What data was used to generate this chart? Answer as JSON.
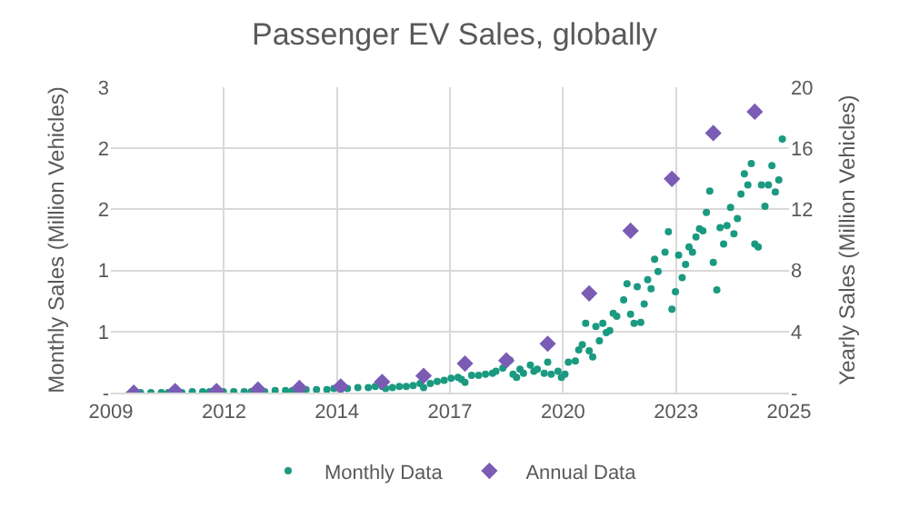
{
  "chart_data": {
    "type": "scatter",
    "title": "Passenger EV Sales, globally",
    "ylabel": "Monthly Sales (Million Vehicles)",
    "y2label": "Yearly Sales (Million Vehicles)",
    "xlim": [
      "2009-06-13",
      "2025-10-30"
    ],
    "xticks": [
      {
        "value": "2009-06-13",
        "label": "2009"
      },
      {
        "value": "2012-03-07",
        "label": "2012"
      },
      {
        "value": "2014-11-28",
        "label": "2014"
      },
      {
        "value": "2017-08-22",
        "label": "2017"
      },
      {
        "value": "2020-05-15",
        "label": "2020"
      },
      {
        "value": "2023-02-06",
        "label": "2023"
      },
      {
        "value": "2025-10-30",
        "label": "2025"
      }
    ],
    "ylim": [
      0,
      3
    ],
    "yticks": [
      {
        "value": 0,
        "label": "-"
      },
      {
        "value": 0.6,
        "label": "1"
      },
      {
        "value": 1.2,
        "label": "1"
      },
      {
        "value": 1.8,
        "label": "2"
      },
      {
        "value": 2.4,
        "label": "2"
      },
      {
        "value": 3,
        "label": "3"
      }
    ],
    "y2lim": [
      0,
      20
    ],
    "y2ticks": [
      {
        "value": 0,
        "label": "-"
      },
      4,
      8,
      12,
      16,
      20
    ],
    "grid": true,
    "legend": "bottom",
    "series": [
      {
        "name": "Monthly Data",
        "marker": "circle",
        "color": "#1a9a80",
        "x": [
          "2010-03",
          "2010-06",
          "2010-09",
          "2010-11",
          "2011-03",
          "2011-06",
          "2011-09",
          "2011-11",
          "2012-03",
          "2012-06",
          "2012-09",
          "2012-11",
          "2013-03",
          "2013-06",
          "2013-09",
          "2013-11",
          "2014-03",
          "2014-06",
          "2014-09",
          "2014-11",
          "2015-03",
          "2015-06",
          "2015-09",
          "2015-11",
          "2016-01",
          "2016-02",
          "2016-04",
          "2016-06",
          "2016-08",
          "2016-10",
          "2016-12",
          "2017-01",
          "2017-03",
          "2017-05",
          "2017-07",
          "2017-09",
          "2017-11",
          "2017-12",
          "2018-01",
          "2018-03",
          "2018-05",
          "2018-07",
          "2018-09",
          "2018-10",
          "2018-12",
          "2019-02",
          "2019-03",
          "2019-04",
          "2019-05",
          "2019-06",
          "2019-08",
          "2019-09",
          "2019-10",
          "2019-12",
          "2020-01",
          "2020-02",
          "2020-04",
          "2020-05",
          "2020-06",
          "2020-07",
          "2020-09",
          "2020-10",
          "2020-11",
          "2020-12",
          "2021-01",
          "2021-02",
          "2021-03",
          "2021-04",
          "2021-05",
          "2021-06",
          "2021-07",
          "2021-08",
          "2021-09",
          "2021-11",
          "2021-12",
          "2022-01",
          "2022-02",
          "2022-03",
          "2022-04",
          "2022-05",
          "2022-06",
          "2022-07",
          "2022-08",
          "2022-09",
          "2022-11",
          "2022-12",
          "2023-01",
          "2023-02",
          "2023-03",
          "2023-04",
          "2023-05",
          "2023-06",
          "2023-07",
          "2023-08",
          "2023-09",
          "2023-10",
          "2023-11",
          "2023-12",
          "2024-01",
          "2024-02",
          "2024-03",
          "2024-04",
          "2024-05",
          "2024-06",
          "2024-07",
          "2024-08",
          "2024-09",
          "2024-10",
          "2024-11",
          "2024-12",
          "2025-01",
          "2025-02",
          "2025-03",
          "2025-04",
          "2025-05",
          "2025-06",
          "2025-07",
          "2025-08",
          "2025-09"
        ],
        "values": [
          0.0,
          0.0,
          0.0,
          0.0,
          0.0,
          0.01,
          0.01,
          0.01,
          0.01,
          0.01,
          0.01,
          0.01,
          0.01,
          0.02,
          0.02,
          0.02,
          0.03,
          0.03,
          0.03,
          0.04,
          0.04,
          0.05,
          0.05,
          0.06,
          0.06,
          0.04,
          0.05,
          0.06,
          0.06,
          0.07,
          0.09,
          0.05,
          0.09,
          0.11,
          0.12,
          0.14,
          0.15,
          0.13,
          0.1,
          0.17,
          0.17,
          0.18,
          0.19,
          0.21,
          0.24,
          0.32,
          0.18,
          0.15,
          0.23,
          0.19,
          0.27,
          0.21,
          0.23,
          0.19,
          0.3,
          0.18,
          0.21,
          0.15,
          0.18,
          0.3,
          0.31,
          0.42,
          0.47,
          0.68,
          0.41,
          0.35,
          0.65,
          0.51,
          0.68,
          0.59,
          0.61,
          0.78,
          0.75,
          0.91,
          1.07,
          0.77,
          0.68,
          1.04,
          0.69,
          0.87,
          1.11,
          1.02,
          1.31,
          1.19,
          1.38,
          1.58,
          0.82,
          0.99,
          1.35,
          1.13,
          1.26,
          1.43,
          1.38,
          1.53,
          1.61,
          1.59,
          1.77,
          1.98,
          1.28,
          1.01,
          1.62,
          1.46,
          1.64,
          1.82,
          1.56,
          1.71,
          1.95,
          2.15,
          2.04,
          2.25,
          1.46,
          1.43,
          2.04,
          1.83,
          2.04,
          2.23,
          1.97,
          2.09,
          2.49
        ]
      },
      {
        "name": "Annual Data",
        "marker": "diamond",
        "color": "#7a5cb5",
        "axis": "y2",
        "x": [
          "2010-01",
          "2011-01",
          "2012-01",
          "2013-01",
          "2014-01",
          "2015-01",
          "2016-01",
          "2017-01",
          "2018-01",
          "2019-01",
          "2020-01",
          "2021-01",
          "2022-01",
          "2023-01",
          "2024-01",
          "2025-01"
        ],
        "values": [
          0.0,
          0.1,
          0.1,
          0.2,
          0.3,
          0.4,
          0.7,
          1.1,
          1.9,
          2.1,
          3.2,
          6.5,
          10.6,
          14.0,
          17.0,
          18.4
        ]
      }
    ]
  }
}
